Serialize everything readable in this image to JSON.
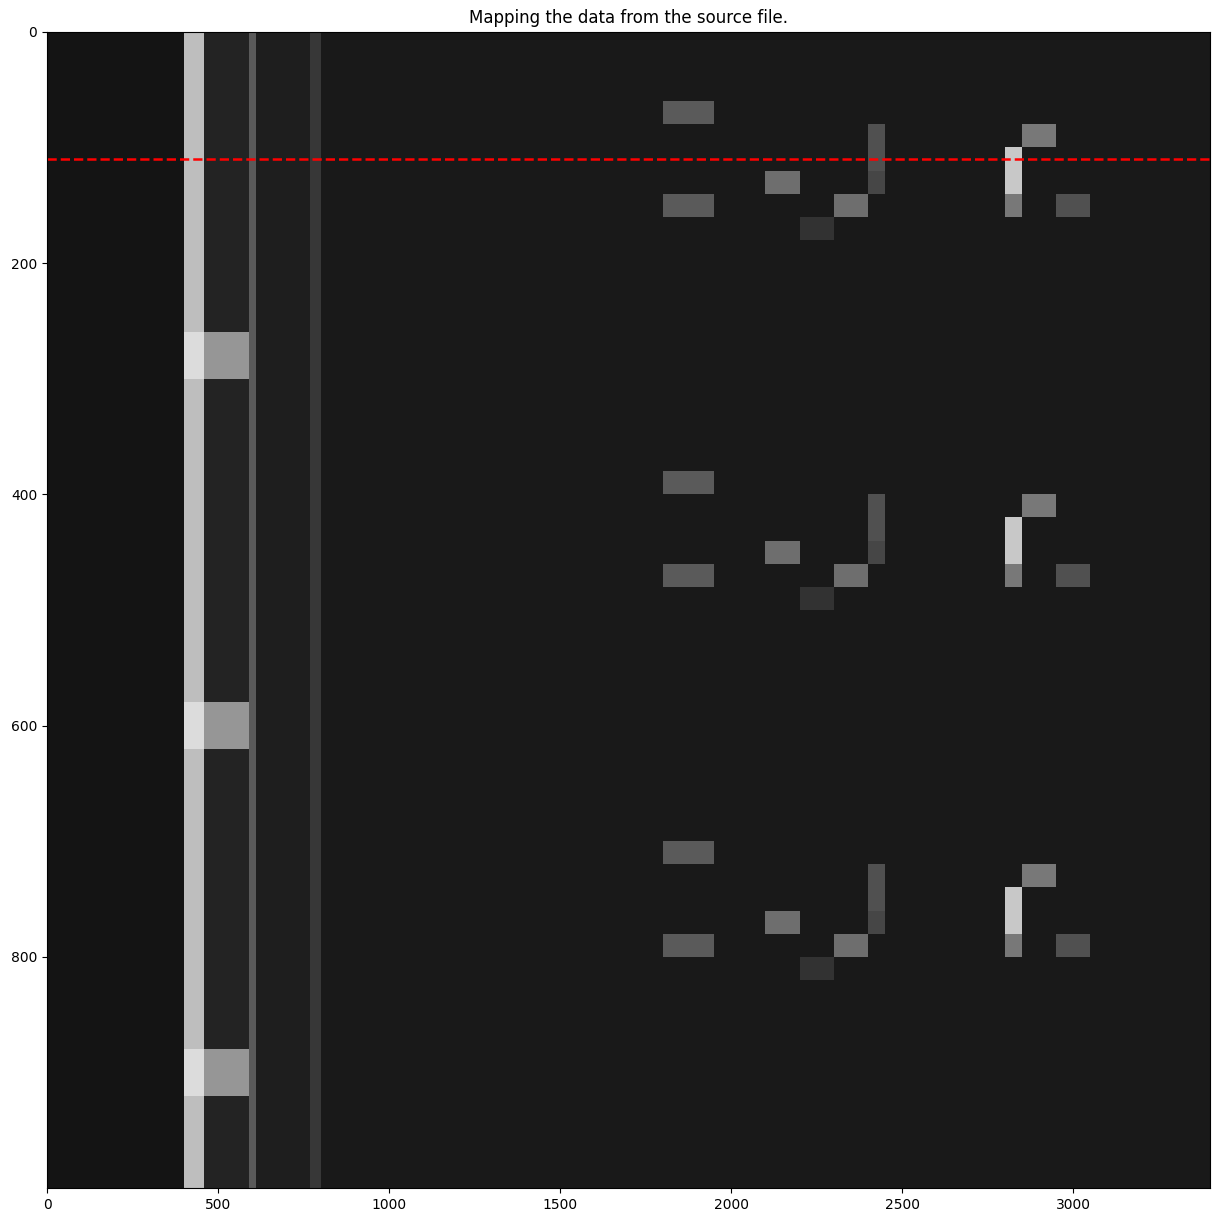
{
  "chart_data": {
    "type": "heatmap",
    "title": "Mapping the data from the source file.",
    "color": "gray",
    "color_range": [
      0,
      255
    ],
    "x_edges": [
      0,
      400,
      460,
      590,
      610,
      770,
      800,
      1800,
      1950,
      2100,
      2200,
      2300,
      2400,
      2450,
      2800,
      2850,
      2950,
      3050,
      3400
    ],
    "y_edges": [
      0,
      20,
      40,
      60,
      80,
      100,
      120,
      140,
      160,
      180,
      200,
      220,
      240,
      260,
      280,
      300,
      320,
      340,
      360,
      380,
      400,
      420,
      440,
      460,
      480,
      500,
      520,
      540,
      560,
      580,
      600,
      620,
      640,
      660,
      680,
      700,
      720,
      740,
      760,
      780,
      800,
      820,
      840,
      860,
      880,
      900,
      920,
      940,
      960,
      980,
      1000
    ],
    "cells": [
      [
        20,
        190,
        35,
        90,
        30,
        55,
        25,
        25,
        25,
        25,
        25,
        25,
        25,
        25,
        25,
        25,
        25,
        25
      ],
      [
        20,
        190,
        35,
        90,
        30,
        55,
        25,
        25,
        25,
        25,
        25,
        25,
        25,
        25,
        25,
        25,
        25,
        25
      ],
      [
        20,
        190,
        35,
        90,
        30,
        55,
        25,
        25,
        25,
        25,
        25,
        25,
        25,
        25,
        25,
        25,
        25,
        25
      ],
      [
        20,
        190,
        35,
        90,
        30,
        55,
        25,
        90,
        25,
        25,
        25,
        25,
        25,
        25,
        25,
        25,
        25,
        25
      ],
      [
        20,
        190,
        35,
        90,
        30,
        55,
        25,
        25,
        25,
        25,
        25,
        25,
        80,
        25,
        25,
        120,
        25,
        25
      ],
      [
        20,
        190,
        35,
        90,
        30,
        55,
        25,
        25,
        25,
        25,
        25,
        25,
        80,
        25,
        200,
        25,
        25,
        25
      ],
      [
        20,
        190,
        35,
        90,
        30,
        55,
        25,
        25,
        25,
        110,
        25,
        25,
        70,
        25,
        200,
        25,
        25,
        25
      ],
      [
        20,
        190,
        35,
        90,
        30,
        55,
        25,
        90,
        25,
        25,
        25,
        110,
        25,
        25,
        120,
        25,
        80,
        25
      ],
      [
        20,
        190,
        35,
        90,
        30,
        55,
        25,
        25,
        25,
        25,
        50,
        25,
        25,
        25,
        25,
        25,
        25,
        25
      ],
      [
        20,
        190,
        35,
        90,
        30,
        55,
        25,
        25,
        25,
        25,
        25,
        25,
        25,
        25,
        25,
        25,
        25,
        25
      ],
      [
        20,
        190,
        35,
        90,
        30,
        55,
        25,
        25,
        25,
        25,
        25,
        25,
        25,
        25,
        25,
        25,
        25,
        25
      ],
      [
        20,
        190,
        35,
        90,
        30,
        55,
        25,
        25,
        25,
        25,
        25,
        25,
        25,
        25,
        25,
        25,
        25,
        25
      ],
      [
        20,
        190,
        35,
        90,
        30,
        55,
        25,
        25,
        25,
        25,
        25,
        25,
        25,
        25,
        25,
        25,
        25,
        25
      ],
      [
        20,
        220,
        150,
        90,
        30,
        55,
        25,
        25,
        25,
        25,
        25,
        25,
        25,
        25,
        25,
        25,
        25,
        25
      ],
      [
        20,
        220,
        150,
        90,
        30,
        55,
        25,
        25,
        25,
        25,
        25,
        25,
        25,
        25,
        25,
        25,
        25,
        25
      ],
      [
        20,
        190,
        35,
        90,
        30,
        55,
        25,
        25,
        25,
        25,
        25,
        25,
        25,
        25,
        25,
        25,
        25,
        25
      ],
      [
        20,
        190,
        35,
        90,
        30,
        55,
        25,
        25,
        25,
        25,
        25,
        25,
        25,
        25,
        25,
        25,
        25,
        25
      ],
      [
        20,
        190,
        35,
        90,
        30,
        55,
        25,
        25,
        25,
        25,
        25,
        25,
        25,
        25,
        25,
        25,
        25,
        25
      ],
      [
        20,
        190,
        35,
        90,
        30,
        55,
        25,
        25,
        25,
        25,
        25,
        25,
        25,
        25,
        25,
        25,
        25,
        25
      ],
      [
        20,
        190,
        35,
        90,
        30,
        55,
        25,
        90,
        25,
        25,
        25,
        25,
        25,
        25,
        25,
        25,
        25,
        25
      ],
      [
        20,
        190,
        35,
        90,
        30,
        55,
        25,
        25,
        25,
        25,
        25,
        25,
        80,
        25,
        25,
        120,
        25,
        25
      ],
      [
        20,
        190,
        35,
        90,
        30,
        55,
        25,
        25,
        25,
        25,
        25,
        25,
        80,
        25,
        200,
        25,
        25,
        25
      ],
      [
        20,
        190,
        35,
        90,
        30,
        55,
        25,
        25,
        25,
        110,
        25,
        25,
        70,
        25,
        200,
        25,
        25,
        25
      ],
      [
        20,
        190,
        35,
        90,
        30,
        55,
        25,
        90,
        25,
        25,
        25,
        110,
        25,
        25,
        120,
        25,
        80,
        25
      ],
      [
        20,
        190,
        35,
        90,
        30,
        55,
        25,
        25,
        25,
        25,
        50,
        25,
        25,
        25,
        25,
        25,
        25,
        25
      ],
      [
        20,
        190,
        35,
        90,
        30,
        55,
        25,
        25,
        25,
        25,
        25,
        25,
        25,
        25,
        25,
        25,
        25,
        25
      ],
      [
        20,
        190,
        35,
        90,
        30,
        55,
        25,
        25,
        25,
        25,
        25,
        25,
        25,
        25,
        25,
        25,
        25,
        25
      ],
      [
        20,
        190,
        35,
        90,
        30,
        55,
        25,
        25,
        25,
        25,
        25,
        25,
        25,
        25,
        25,
        25,
        25,
        25
      ],
      [
        20,
        190,
        35,
        90,
        30,
        55,
        25,
        25,
        25,
        25,
        25,
        25,
        25,
        25,
        25,
        25,
        25,
        25
      ],
      [
        20,
        220,
        150,
        90,
        30,
        55,
        25,
        25,
        25,
        25,
        25,
        25,
        25,
        25,
        25,
        25,
        25,
        25
      ],
      [
        20,
        220,
        150,
        90,
        30,
        55,
        25,
        25,
        25,
        25,
        25,
        25,
        25,
        25,
        25,
        25,
        25,
        25
      ],
      [
        20,
        190,
        35,
        90,
        30,
        55,
        25,
        25,
        25,
        25,
        25,
        25,
        25,
        25,
        25,
        25,
        25,
        25
      ],
      [
        20,
        190,
        35,
        90,
        30,
        55,
        25,
        25,
        25,
        25,
        25,
        25,
        25,
        25,
        25,
        25,
        25,
        25
      ],
      [
        20,
        190,
        35,
        90,
        30,
        55,
        25,
        25,
        25,
        25,
        25,
        25,
        25,
        25,
        25,
        25,
        25,
        25
      ],
      [
        20,
        190,
        35,
        90,
        30,
        55,
        25,
        25,
        25,
        25,
        25,
        25,
        25,
        25,
        25,
        25,
        25,
        25
      ],
      [
        20,
        190,
        35,
        90,
        30,
        55,
        25,
        90,
        25,
        25,
        25,
        25,
        25,
        25,
        25,
        25,
        25,
        25
      ],
      [
        20,
        190,
        35,
        90,
        30,
        55,
        25,
        25,
        25,
        25,
        25,
        25,
        80,
        25,
        25,
        120,
        25,
        25
      ],
      [
        20,
        190,
        35,
        90,
        30,
        55,
        25,
        25,
        25,
        25,
        25,
        25,
        80,
        25,
        200,
        25,
        25,
        25
      ],
      [
        20,
        190,
        35,
        90,
        30,
        55,
        25,
        25,
        25,
        110,
        25,
        25,
        70,
        25,
        200,
        25,
        25,
        25
      ],
      [
        20,
        190,
        35,
        90,
        30,
        55,
        25,
        90,
        25,
        25,
        25,
        110,
        25,
        25,
        120,
        25,
        80,
        25
      ],
      [
        20,
        190,
        35,
        90,
        30,
        55,
        25,
        25,
        25,
        25,
        50,
        25,
        25,
        25,
        25,
        25,
        25,
        25
      ],
      [
        20,
        190,
        35,
        90,
        30,
        55,
        25,
        25,
        25,
        25,
        25,
        25,
        25,
        25,
        25,
        25,
        25,
        25
      ],
      [
        20,
        190,
        35,
        90,
        30,
        55,
        25,
        25,
        25,
        25,
        25,
        25,
        25,
        25,
        25,
        25,
        25,
        25
      ],
      [
        20,
        190,
        35,
        90,
        30,
        55,
        25,
        25,
        25,
        25,
        25,
        25,
        25,
        25,
        25,
        25,
        25,
        25
      ],
      [
        20,
        220,
        150,
        90,
        30,
        55,
        25,
        25,
        25,
        25,
        25,
        25,
        25,
        25,
        25,
        25,
        25,
        25
      ],
      [
        20,
        220,
        150,
        90,
        30,
        55,
        25,
        25,
        25,
        25,
        25,
        25,
        25,
        25,
        25,
        25,
        25,
        25
      ],
      [
        20,
        190,
        35,
        90,
        30,
        55,
        25,
        25,
        25,
        25,
        25,
        25,
        25,
        25,
        25,
        25,
        25,
        25
      ],
      [
        20,
        190,
        35,
        90,
        30,
        55,
        25,
        25,
        25,
        25,
        25,
        25,
        25,
        25,
        25,
        25,
        25,
        25
      ],
      [
        20,
        190,
        35,
        90,
        30,
        55,
        25,
        25,
        25,
        25,
        25,
        25,
        25,
        25,
        25,
        25,
        25,
        25
      ],
      [
        20,
        190,
        35,
        90,
        30,
        55,
        25,
        25,
        25,
        25,
        25,
        25,
        25,
        25,
        25,
        25,
        25,
        25
      ]
    ],
    "hline": {
      "y": 110,
      "color": "red",
      "line_style": "dashed"
    },
    "xlim": [
      0,
      3400
    ],
    "ylim": [
      1000,
      0
    ],
    "xticks": [
      0,
      500,
      1000,
      1500,
      2000,
      2500,
      3000
    ],
    "yticks": [
      0,
      200,
      400,
      600,
      800
    ]
  }
}
